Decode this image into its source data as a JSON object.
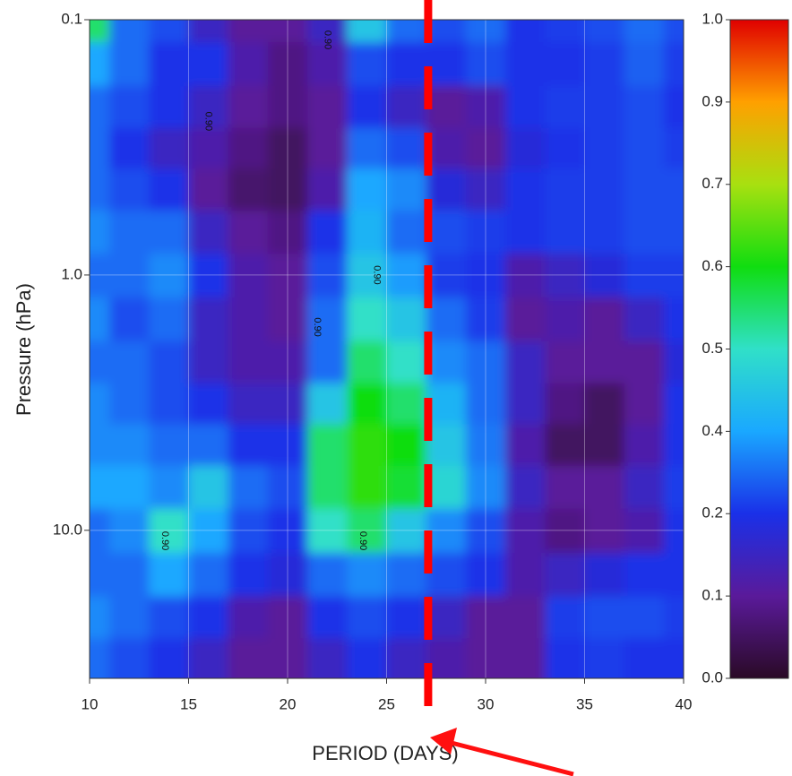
{
  "chart_data": {
    "type": "heatmap",
    "x_label": "PERIOD (DAYS)",
    "y_label": "Pressure (hPa)",
    "x": [
      10,
      12,
      14,
      16,
      18,
      20,
      22,
      24,
      26,
      28,
      30,
      32,
      34,
      36,
      38,
      40
    ],
    "y": [
      0.1,
      0.15,
      0.22,
      0.32,
      0.46,
      0.68,
      1,
      1.5,
      2.2,
      3.2,
      4.6,
      6.8,
      10,
      15,
      22,
      32
    ],
    "values": [
      [
        0.55,
        0.3,
        0.25,
        0.15,
        0.1,
        0.1,
        0.15,
        0.45,
        0.3,
        0.25,
        0.3,
        0.2,
        0.22,
        0.25,
        0.3,
        0.25
      ],
      [
        0.4,
        0.3,
        0.2,
        0.2,
        0.12,
        0.08,
        0.12,
        0.25,
        0.2,
        0.2,
        0.25,
        0.2,
        0.2,
        0.22,
        0.28,
        0.22
      ],
      [
        0.3,
        0.25,
        0.2,
        0.15,
        0.1,
        0.08,
        0.1,
        0.2,
        0.15,
        0.1,
        0.12,
        0.2,
        0.22,
        0.22,
        0.25,
        0.2
      ],
      [
        0.3,
        0.2,
        0.15,
        0.12,
        0.08,
        0.05,
        0.1,
        0.3,
        0.25,
        0.12,
        0.1,
        0.18,
        0.2,
        0.22,
        0.25,
        0.22
      ],
      [
        0.3,
        0.25,
        0.2,
        0.1,
        0.06,
        0.05,
        0.12,
        0.4,
        0.35,
        0.18,
        0.15,
        0.2,
        0.22,
        0.22,
        0.25,
        0.25
      ],
      [
        0.35,
        0.3,
        0.3,
        0.15,
        0.1,
        0.08,
        0.2,
        0.42,
        0.3,
        0.25,
        0.22,
        0.2,
        0.22,
        0.22,
        0.25,
        0.25
      ],
      [
        0.3,
        0.3,
        0.35,
        0.2,
        0.12,
        0.1,
        0.25,
        0.45,
        0.38,
        0.22,
        0.2,
        0.12,
        0.15,
        0.18,
        0.22,
        0.22
      ],
      [
        0.35,
        0.25,
        0.3,
        0.15,
        0.12,
        0.1,
        0.3,
        0.5,
        0.45,
        0.3,
        0.22,
        0.1,
        0.12,
        0.1,
        0.15,
        0.2
      ],
      [
        0.3,
        0.3,
        0.25,
        0.15,
        0.12,
        0.12,
        0.3,
        0.55,
        0.5,
        0.35,
        0.3,
        0.15,
        0.1,
        0.1,
        0.1,
        0.18
      ],
      [
        0.35,
        0.3,
        0.25,
        0.2,
        0.15,
        0.15,
        0.45,
        0.6,
        0.55,
        0.42,
        0.3,
        0.15,
        0.08,
        0.05,
        0.1,
        0.2
      ],
      [
        0.35,
        0.35,
        0.3,
        0.3,
        0.2,
        0.2,
        0.55,
        0.62,
        0.6,
        0.45,
        0.32,
        0.12,
        0.05,
        0.05,
        0.12,
        0.2
      ],
      [
        0.4,
        0.4,
        0.35,
        0.45,
        0.3,
        0.25,
        0.55,
        0.62,
        0.58,
        0.48,
        0.35,
        0.15,
        0.1,
        0.1,
        0.15,
        0.22
      ],
      [
        0.3,
        0.35,
        0.5,
        0.4,
        0.25,
        0.2,
        0.5,
        0.55,
        0.45,
        0.35,
        0.25,
        0.12,
        0.08,
        0.1,
        0.12,
        0.2
      ],
      [
        0.3,
        0.3,
        0.4,
        0.3,
        0.2,
        0.18,
        0.3,
        0.35,
        0.3,
        0.25,
        0.2,
        0.12,
        0.15,
        0.18,
        0.2,
        0.2
      ],
      [
        0.35,
        0.3,
        0.25,
        0.2,
        0.12,
        0.1,
        0.2,
        0.25,
        0.2,
        0.15,
        0.1,
        0.1,
        0.22,
        0.25,
        0.25,
        0.22
      ],
      [
        0.3,
        0.25,
        0.2,
        0.15,
        0.1,
        0.1,
        0.15,
        0.2,
        0.15,
        0.12,
        0.1,
        0.1,
        0.2,
        0.22,
        0.2,
        0.2
      ]
    ],
    "xlim": [
      10,
      40
    ],
    "xticks": [
      10,
      15,
      20,
      25,
      30,
      35,
      40
    ],
    "ylim": [
      0.1,
      38
    ],
    "y_log": true,
    "y_inverted": true,
    "yticks": [
      0.1,
      {
        "value": 1,
        "label": "1.0"
      },
      {
        "value": 10,
        "label": "10.0"
      }
    ],
    "grid": true,
    "colorbar": {
      "ticks": [
        {
          "value": 0,
          "label": "0.0"
        },
        0.1,
        0.2,
        0.4,
        0.5,
        0.6,
        0.7,
        0.9,
        {
          "value": 1,
          "label": "1.0"
        }
      ],
      "colors": [
        "#2a0a26",
        "#5a1a9a",
        "#1a30e8",
        "#1aa8ff",
        "#30e0c8",
        "#10dd10",
        "#a8e010",
        "#ffa000",
        "#e00000"
      ]
    },
    "contour_label": {
      "value": 0.9,
      "label": "0.90"
    },
    "reference_line": {
      "x": 27.1,
      "color": "#ff0000"
    }
  }
}
